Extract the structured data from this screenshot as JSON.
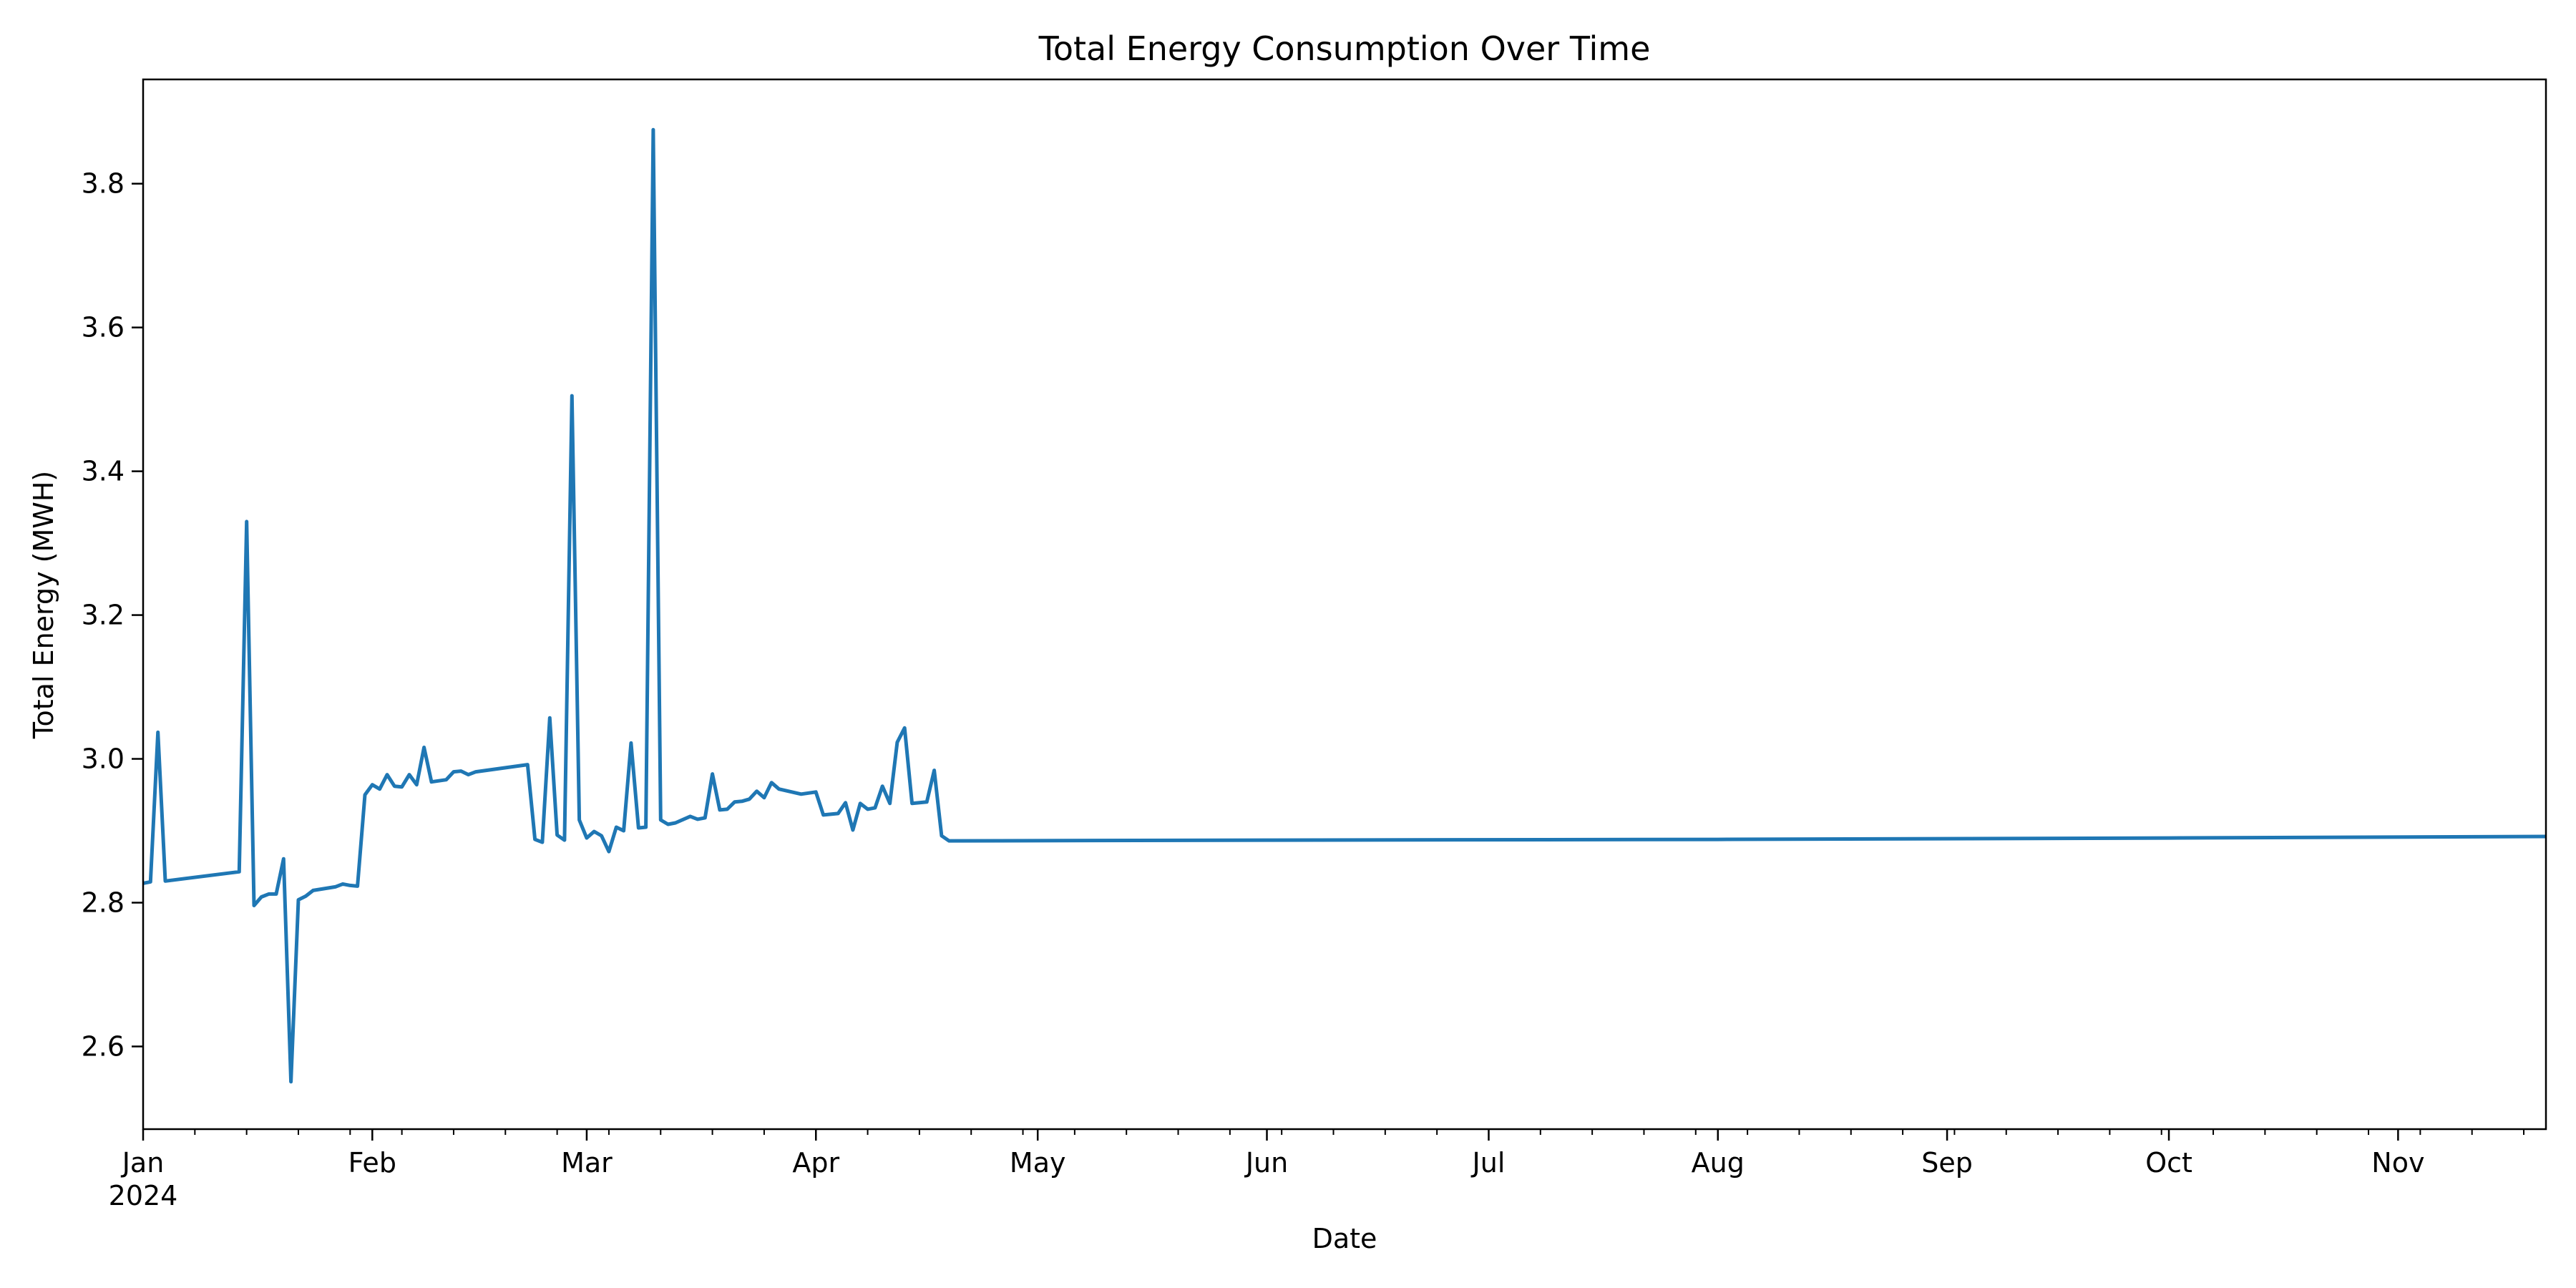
{
  "chart_data": {
    "type": "line",
    "title": "Total Energy Consumption Over Time",
    "xlabel": "Date",
    "ylabel": "Total Energy (MWH)",
    "xlim": [
      "2024-01-01",
      "2024-11-21"
    ],
    "ylim": [
      2.485,
      3.945
    ],
    "grid": false,
    "x_ticks": [
      {
        "date": "2024-01-01",
        "label": "Jan",
        "sublabel": "2024"
      },
      {
        "date": "2024-02-01",
        "label": "Feb"
      },
      {
        "date": "2024-03-01",
        "label": "Mar"
      },
      {
        "date": "2024-04-01",
        "label": "Apr"
      },
      {
        "date": "2024-05-01",
        "label": "May"
      },
      {
        "date": "2024-06-01",
        "label": "Jun"
      },
      {
        "date": "2024-07-01",
        "label": "Jul"
      },
      {
        "date": "2024-08-01",
        "label": "Aug"
      },
      {
        "date": "2024-09-01",
        "label": "Sep"
      },
      {
        "date": "2024-10-01",
        "label": "Oct"
      },
      {
        "date": "2024-11-01",
        "label": "Nov"
      }
    ],
    "y_ticks": [
      2.6,
      2.8,
      3.0,
      3.2,
      3.4,
      3.6,
      3.8
    ],
    "y_tick_labels": [
      "2.6",
      "2.8",
      "3.0",
      "3.2",
      "3.4",
      "3.6",
      "3.8"
    ],
    "series": [
      {
        "color": "#1f77b4",
        "x": [
          "2024-01-01",
          "2024-01-02",
          "2024-01-03",
          "2024-01-04",
          "2024-01-14",
          "2024-01-15",
          "2024-01-16",
          "2024-01-17",
          "2024-01-18",
          "2024-01-19",
          "2024-01-20",
          "2024-01-21",
          "2024-01-22",
          "2024-01-23",
          "2024-01-24",
          "2024-01-27",
          "2024-01-28",
          "2024-01-29",
          "2024-01-30",
          "2024-01-31",
          "2024-02-01",
          "2024-02-02",
          "2024-02-03",
          "2024-02-04",
          "2024-02-05",
          "2024-02-06",
          "2024-02-07",
          "2024-02-08",
          "2024-02-09",
          "2024-02-11",
          "2024-02-12",
          "2024-02-13",
          "2024-02-14",
          "2024-02-15",
          "2024-02-22",
          "2024-02-23",
          "2024-02-24",
          "2024-02-25",
          "2024-02-26",
          "2024-02-27",
          "2024-02-28",
          "2024-02-29",
          "2024-03-01",
          "2024-03-02",
          "2024-03-03",
          "2024-03-04",
          "2024-03-05",
          "2024-03-06",
          "2024-03-07",
          "2024-03-08",
          "2024-03-09",
          "2024-03-10",
          "2024-03-11",
          "2024-03-12",
          "2024-03-13",
          "2024-03-15",
          "2024-03-16",
          "2024-03-17",
          "2024-03-18",
          "2024-03-19",
          "2024-03-20",
          "2024-03-21",
          "2024-03-22",
          "2024-03-23",
          "2024-03-24",
          "2024-03-25",
          "2024-03-26",
          "2024-03-27",
          "2024-03-30",
          "2024-04-01",
          "2024-04-02",
          "2024-04-03",
          "2024-04-04",
          "2024-04-05",
          "2024-04-06",
          "2024-04-07",
          "2024-04-08",
          "2024-04-09",
          "2024-04-10",
          "2024-04-11",
          "2024-04-12",
          "2024-04-13",
          "2024-04-14",
          "2024-04-16",
          "2024-04-17",
          "2024-04-18",
          "2024-04-19",
          "2024-06-01",
          "2024-08-01",
          "2024-10-01",
          "2024-11-21"
        ],
        "y": [
          2.827,
          2.829,
          3.037,
          2.83,
          2.843,
          3.33,
          2.796,
          2.808,
          2.812,
          2.812,
          2.861,
          2.551,
          2.804,
          2.809,
          2.817,
          2.822,
          2.826,
          2.824,
          2.823,
          2.95,
          2.964,
          2.958,
          2.978,
          2.962,
          2.961,
          2.978,
          2.964,
          3.016,
          2.968,
          2.971,
          2.982,
          2.983,
          2.978,
          2.982,
          2.992,
          2.888,
          2.884,
          3.057,
          2.894,
          2.887,
          3.505,
          2.915,
          2.89,
          2.899,
          2.893,
          2.871,
          2.905,
          2.9,
          3.022,
          2.904,
          2.905,
          3.875,
          2.915,
          2.909,
          2.911,
          2.92,
          2.916,
          2.918,
          2.979,
          2.929,
          2.93,
          2.94,
          2.941,
          2.944,
          2.955,
          2.946,
          2.967,
          2.958,
          2.951,
          2.954,
          2.922,
          2.923,
          2.924,
          2.939,
          2.901,
          2.938,
          2.93,
          2.932,
          2.962,
          2.938,
          3.023,
          3.043,
          2.938,
          2.94,
          2.984,
          2.893,
          2.886,
          2.887,
          2.888,
          2.89,
          2.892
        ]
      }
    ]
  }
}
